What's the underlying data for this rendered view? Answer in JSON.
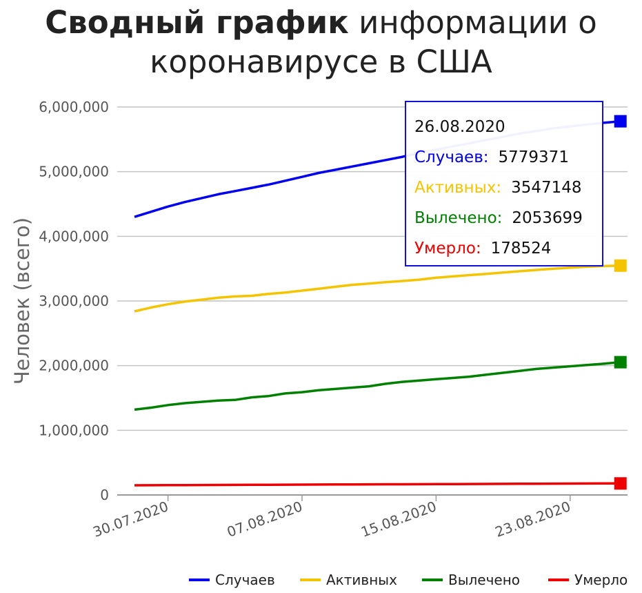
{
  "title": {
    "bold": "Сводный график",
    "rest_line1": " информации о",
    "line2": "коронавирусе в США"
  },
  "chart_data": {
    "type": "line",
    "title": "Сводный график информации о коронавирусе в США",
    "ylabel": "Человек (всего)",
    "xlabel": "",
    "ylim": [
      0,
      6000000
    ],
    "y_ticks": [
      "0",
      "1,000,000",
      "2,000,000",
      "3,000,000",
      "4,000,000",
      "5,000,000",
      "6,000,000"
    ],
    "y_tick_values": [
      0,
      1000000,
      2000000,
      3000000,
      4000000,
      5000000,
      6000000
    ],
    "x_tick_labels": [
      "30.07.2020",
      "07.08.2020",
      "15.08.2020",
      "23.08.2020"
    ],
    "x": [
      "28.07.2020",
      "29.07.2020",
      "30.07.2020",
      "31.07.2020",
      "01.08.2020",
      "02.08.2020",
      "03.08.2020",
      "04.08.2020",
      "05.08.2020",
      "06.08.2020",
      "07.08.2020",
      "08.08.2020",
      "09.08.2020",
      "10.08.2020",
      "11.08.2020",
      "12.08.2020",
      "13.08.2020",
      "14.08.2020",
      "15.08.2020",
      "16.08.2020",
      "17.08.2020",
      "18.08.2020",
      "19.08.2020",
      "20.08.2020",
      "21.08.2020",
      "22.08.2020",
      "23.08.2020",
      "24.08.2020",
      "25.08.2020",
      "26.08.2020"
    ],
    "grid": true,
    "legend_position": "bottom-right",
    "series": [
      {
        "name": "Случаев",
        "color": "#0000ee",
        "values": [
          4300000,
          4380000,
          4460000,
          4530000,
          4590000,
          4650000,
          4700000,
          4750000,
          4800000,
          4860000,
          4920000,
          4980000,
          5030000,
          5080000,
          5130000,
          5180000,
          5230000,
          5290000,
          5340000,
          5390000,
          5440000,
          5490000,
          5540000,
          5590000,
          5630000,
          5670000,
          5700000,
          5730000,
          5755000,
          5779371
        ]
      },
      {
        "name": "Активных",
        "color": "#f5c400",
        "values": [
          2840000,
          2900000,
          2950000,
          2990000,
          3020000,
          3050000,
          3070000,
          3080000,
          3110000,
          3130000,
          3160000,
          3190000,
          3220000,
          3250000,
          3270000,
          3290000,
          3310000,
          3330000,
          3360000,
          3380000,
          3400000,
          3420000,
          3440000,
          3460000,
          3480000,
          3500000,
          3515000,
          3530000,
          3540000,
          3547148
        ]
      },
      {
        "name": "Вылечено",
        "color": "#008000",
        "values": [
          1320000,
          1350000,
          1390000,
          1420000,
          1440000,
          1460000,
          1470000,
          1510000,
          1530000,
          1570000,
          1590000,
          1620000,
          1640000,
          1660000,
          1680000,
          1720000,
          1750000,
          1770000,
          1790000,
          1810000,
          1830000,
          1860000,
          1890000,
          1920000,
          1950000,
          1970000,
          1990000,
          2010000,
          2030000,
          2053699
        ]
      },
      {
        "name": "Умерло",
        "color": "#ee0000",
        "values": [
          150000,
          151000,
          152000,
          153000,
          154000,
          155000,
          156000,
          157000,
          158000,
          159000,
          160000,
          161000,
          162000,
          163000,
          164000,
          165000,
          166000,
          167000,
          168000,
          169000,
          170000,
          171000,
          172000,
          173000,
          174000,
          175000,
          176000,
          177000,
          178000,
          178524
        ]
      }
    ]
  },
  "tooltip": {
    "date": "26.08.2020",
    "rows": [
      {
        "label": "Случаев:",
        "value": "5779371",
        "color": "#0000ee"
      },
      {
        "label": "Активных:",
        "value": "3547148",
        "color": "#f5c400"
      },
      {
        "label": "Вылечено:",
        "value": "2053699",
        "color": "#008000"
      },
      {
        "label": "Умерло:",
        "value": "178524",
        "color": "#ee0000"
      }
    ]
  }
}
